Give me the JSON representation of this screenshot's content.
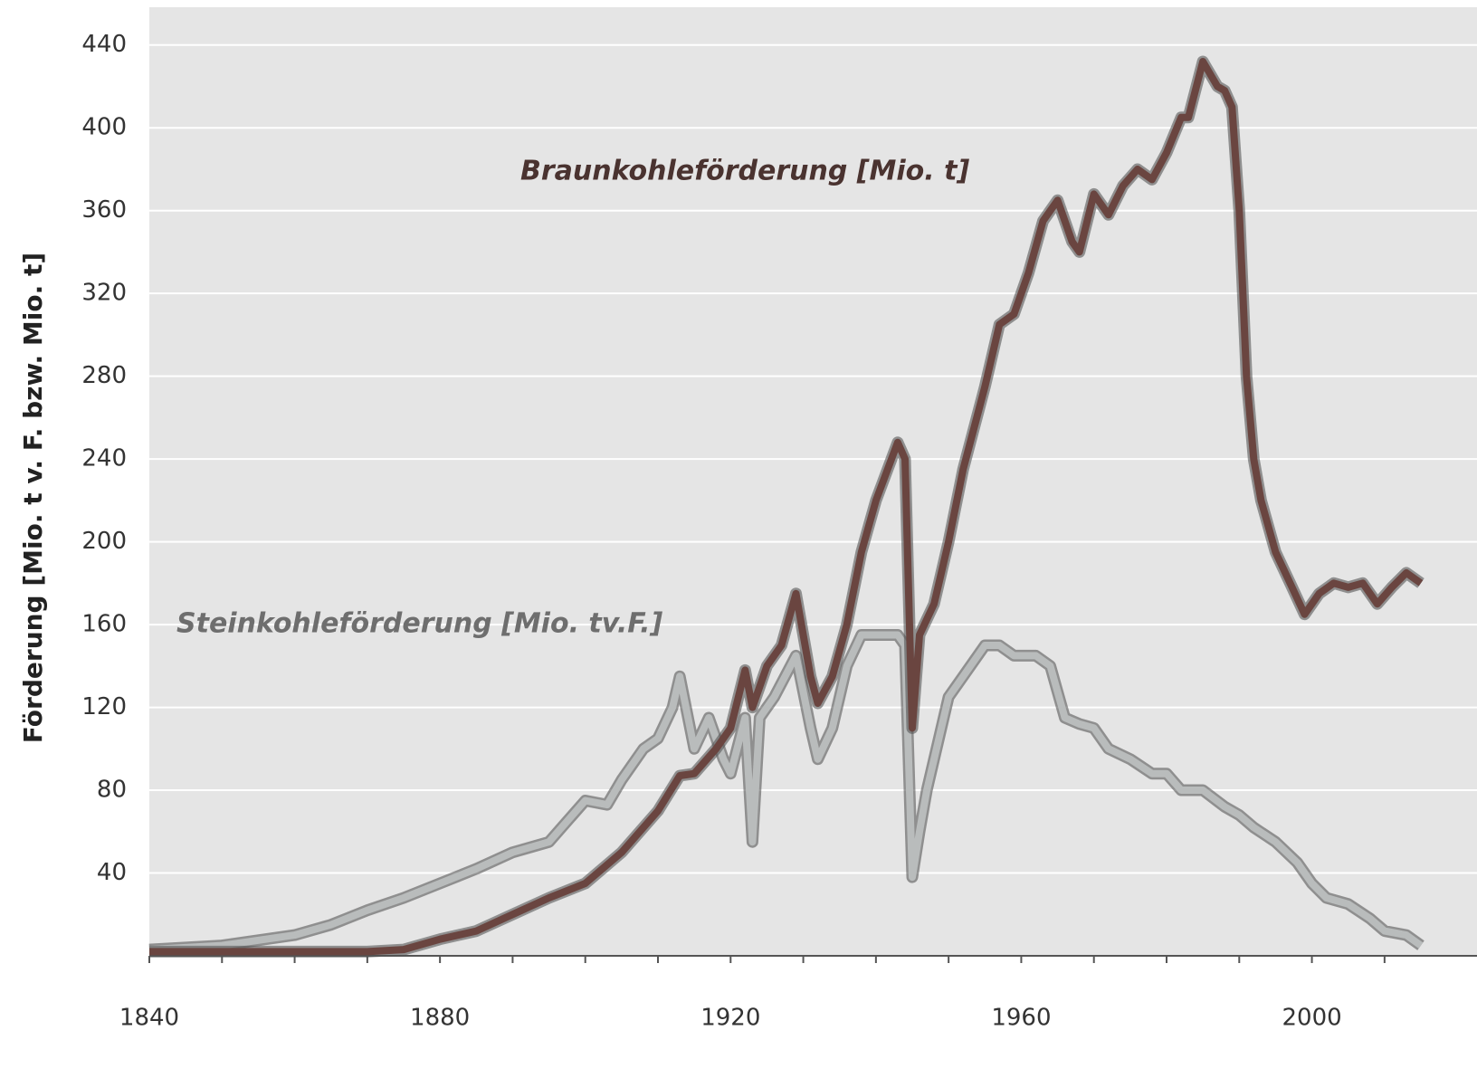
{
  "chart_data": {
    "type": "line",
    "y_label": "Förderung [Mio. t v. F. bzw. Mio. t]",
    "xlim": [
      1840,
      2015
    ],
    "xticks": [
      1840,
      1880,
      1920,
      1960,
      2000
    ],
    "xminor_ticks": [
      1850,
      1860,
      1870,
      1890,
      1900,
      1910,
      1930,
      1940,
      1950,
      1970,
      1980,
      1990,
      2010
    ],
    "ylim": [
      0,
      460
    ],
    "yticks": [
      40,
      80,
      120,
      160,
      200,
      240,
      280,
      320,
      360,
      400,
      440
    ],
    "grid": true,
    "series": [
      {
        "name": "Steinkohleförderung  [Mio. tv.F.]",
        "color": "#b9bcbc",
        "x": [
          1840,
          1850,
          1860,
          1865,
          1870,
          1875,
          1880,
          1885,
          1890,
          1895,
          1900,
          1903,
          1905,
          1908,
          1910,
          1912,
          1913,
          1915,
          1917,
          1919,
          1920,
          1922,
          1923,
          1924,
          1926,
          1929,
          1931,
          1932,
          1934,
          1936,
          1938,
          1940,
          1943,
          1944,
          1945,
          1946,
          1947,
          1950,
          1952,
          1955,
          1957,
          1959,
          1962,
          1964,
          1966,
          1968,
          1970,
          1972,
          1975,
          1978,
          1980,
          1982,
          1985,
          1988,
          1990,
          1992,
          1995,
          1998,
          2000,
          2002,
          2005,
          2008,
          2010,
          2013,
          2015
        ],
        "values": [
          3,
          5,
          10,
          15,
          22,
          28,
          35,
          42,
          50,
          55,
          75,
          73,
          85,
          100,
          105,
          120,
          135,
          100,
          115,
          95,
          88,
          115,
          55,
          115,
          125,
          145,
          110,
          95,
          110,
          140,
          155,
          155,
          155,
          150,
          38,
          60,
          80,
          125,
          135,
          150,
          150,
          145,
          145,
          140,
          115,
          112,
          110,
          100,
          95,
          88,
          88,
          80,
          80,
          72,
          68,
          62,
          55,
          45,
          35,
          28,
          25,
          18,
          12,
          10,
          5
        ]
      },
      {
        "name": "Braunkohleförderung  [Mio. t]",
        "color": "#6a4540",
        "x": [
          1840,
          1850,
          1860,
          1870,
          1875,
          1880,
          1885,
          1890,
          1895,
          1900,
          1905,
          1910,
          1913,
          1915,
          1918,
          1920,
          1922,
          1923,
          1925,
          1927,
          1929,
          1931,
          1932,
          1934,
          1936,
          1938,
          1940,
          1943,
          1944,
          1945,
          1946,
          1948,
          1950,
          1952,
          1955,
          1957,
          1959,
          1961,
          1963,
          1965,
          1967,
          1968,
          1970,
          1972,
          1974,
          1976,
          1978,
          1980,
          1982,
          1983,
          1985,
          1987,
          1988,
          1989,
          1990,
          1991,
          1992,
          1993,
          1995,
          1997,
          1999,
          2001,
          2003,
          2005,
          2007,
          2009,
          2011,
          2013,
          2015
        ],
        "values": [
          2,
          2,
          2,
          2,
          3,
          8,
          12,
          20,
          28,
          35,
          50,
          70,
          87,
          88,
          100,
          110,
          138,
          120,
          140,
          150,
          175,
          135,
          122,
          135,
          160,
          195,
          220,
          248,
          240,
          110,
          155,
          170,
          200,
          235,
          275,
          305,
          310,
          330,
          355,
          365,
          345,
          340,
          368,
          358,
          372,
          380,
          375,
          388,
          405,
          405,
          432,
          420,
          418,
          410,
          360,
          280,
          240,
          220,
          195,
          180,
          165,
          175,
          180,
          178,
          180,
          170,
          178,
          185,
          180
        ]
      }
    ]
  }
}
